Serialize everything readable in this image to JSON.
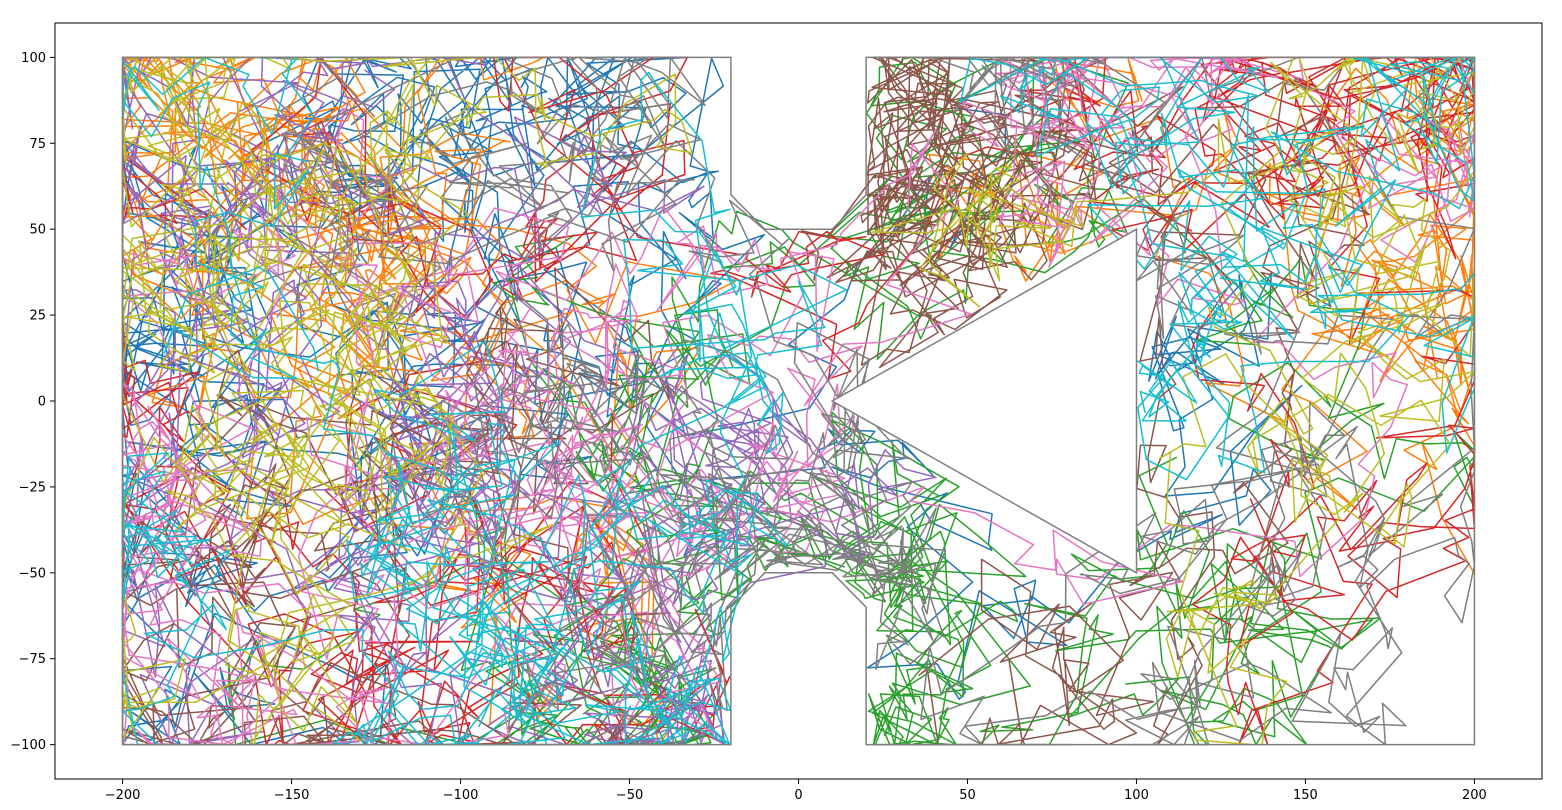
{
  "chart_data": {
    "type": "line",
    "title": "",
    "xlabel": "",
    "ylabel": "",
    "xlim": [
      -220,
      220
    ],
    "ylim": [
      -110,
      110
    ],
    "xticks": [
      -200,
      -150,
      -100,
      -50,
      0,
      50,
      100,
      150,
      200
    ],
    "yticks": [
      -100,
      -75,
      -50,
      -25,
      0,
      25,
      50,
      75,
      100
    ],
    "x_tick_labels": [
      "−200",
      "−150",
      "−100",
      "−50",
      "0",
      "50",
      "100",
      "150",
      "200"
    ],
    "y_tick_labels": [
      "−100",
      "−75",
      "−50",
      "−25",
      "0",
      "25",
      "50",
      "75",
      "100"
    ],
    "grid": false,
    "legend": "none",
    "boundary": {
      "color": "#7f7f7f",
      "left_region": [
        [
          -200,
          -100
        ],
        [
          -20,
          -100
        ],
        [
          -20,
          -60
        ],
        [
          -10,
          -50
        ],
        [
          10,
          -50
        ],
        [
          20,
          -60
        ],
        [
          20,
          -100
        ],
        [
          200,
          -100
        ],
        [
          200,
          100
        ],
        [
          20,
          100
        ],
        [
          20,
          60
        ],
        [
          10,
          50
        ],
        [
          -10,
          50
        ],
        [
          -20,
          60
        ],
        [
          -20,
          100
        ],
        [
          -200,
          100
        ],
        [
          -200,
          -100
        ]
      ],
      "triangle_obstacle": [
        [
          100,
          50
        ],
        [
          10,
          0
        ],
        [
          100,
          -50
        ],
        [
          100,
          50
        ]
      ]
    },
    "walks": {
      "description_hidden": true,
      "palette": [
        "#1f77b4",
        "#ff7f0e",
        "#2ca02c",
        "#d62728",
        "#9467bd",
        "#8c564b",
        "#e377c2",
        "#7f7f7f",
        "#bcbd22",
        "#17becf"
      ],
      "series_count": 10,
      "steps_per_series": 260,
      "step_scale": 14,
      "seed": 7
    }
  }
}
